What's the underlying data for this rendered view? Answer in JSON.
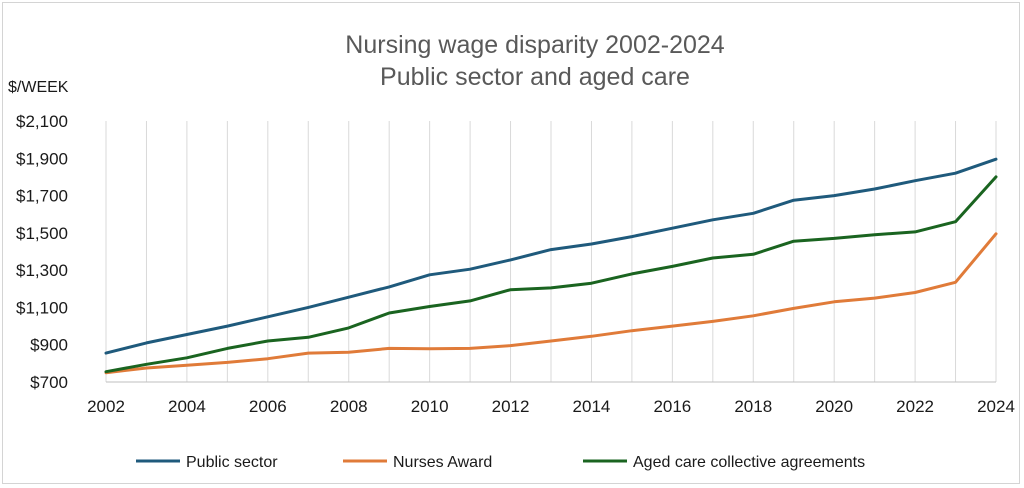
{
  "chart_data": {
    "type": "line",
    "title": "Nursing wage disparity 2002-2024",
    "subtitle": "Public sector and aged care",
    "ylabel": "$/WEEK",
    "xlabel": "",
    "ylim": [
      700,
      2100
    ],
    "y_ticks": [
      "$2,100",
      "$1,900",
      "$1,700",
      "$1,500",
      "$1,300",
      "$1,100",
      "$900",
      "$700"
    ],
    "y_tick_values": [
      2100,
      1900,
      1700,
      1500,
      1300,
      1100,
      900,
      700
    ],
    "x_ticks": [
      "2002",
      "2004",
      "2006",
      "2008",
      "2010",
      "2012",
      "2014",
      "2016",
      "2018",
      "2020",
      "2022",
      "2024"
    ],
    "x_tick_values": [
      2002,
      2004,
      2006,
      2008,
      2010,
      2012,
      2014,
      2016,
      2018,
      2020,
      2022,
      2024
    ],
    "x": [
      2002,
      2003,
      2004,
      2005,
      2006,
      2007,
      2008,
      2009,
      2010,
      2011,
      2012,
      2013,
      2014,
      2015,
      2016,
      2017,
      2018,
      2019,
      2020,
      2021,
      2022,
      2023,
      2024
    ],
    "grid": "vertical",
    "legend_position": "bottom",
    "series": [
      {
        "name": "Public sector",
        "color": "#1f5a7c",
        "values": [
          855,
          910,
          955,
          1000,
          1050,
          1100,
          1155,
          1210,
          1275,
          1305,
          1355,
          1410,
          1440,
          1480,
          1525,
          1570,
          1605,
          1675,
          1700,
          1735,
          1780,
          1820,
          1895
        ]
      },
      {
        "name": "Nurses Award",
        "color": "#e07b39",
        "values": [
          750,
          775,
          790,
          805,
          825,
          855,
          860,
          880,
          878,
          880,
          895,
          920,
          945,
          975,
          1000,
          1025,
          1055,
          1095,
          1130,
          1150,
          1180,
          1235,
          1495
        ]
      },
      {
        "name": "Aged care collective agreements",
        "color": "#1a6420",
        "values": [
          755,
          795,
          830,
          880,
          920,
          940,
          990,
          1070,
          1105,
          1135,
          1195,
          1205,
          1230,
          1280,
          1320,
          1365,
          1385,
          1455,
          1470,
          1490,
          1505,
          1560,
          1800
        ]
      }
    ]
  }
}
